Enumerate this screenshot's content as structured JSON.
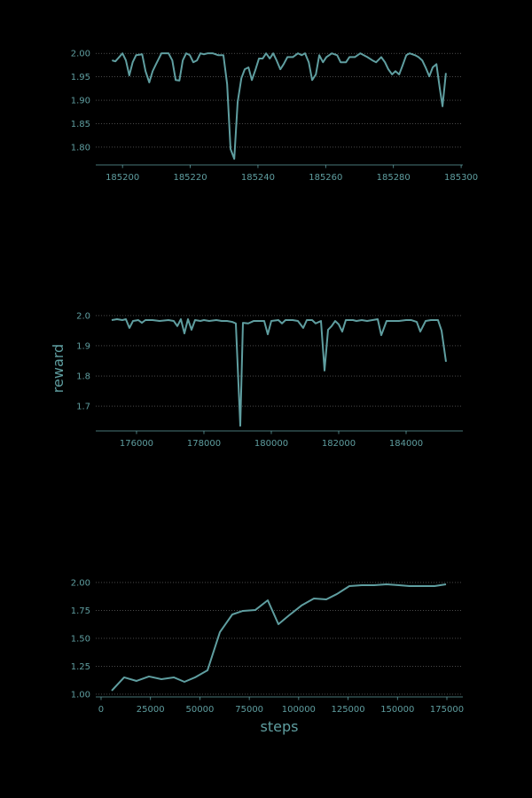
{
  "chart_data": [
    {
      "type": "line",
      "color": "#5f9ea0",
      "grid": true,
      "xlim": [
        185192.1,
        185300.5
      ],
      "ylim": [
        1.762,
        2.023
      ],
      "xticks": [
        185200,
        185220,
        185240,
        185260,
        185280,
        185300
      ],
      "yticks": [
        {
          "value": 1.8,
          "label": "1.80"
        },
        1.85,
        {
          "value": 1.9,
          "label": "1.90"
        },
        1.95,
        {
          "value": 2.0,
          "label": "2.00"
        }
      ],
      "series": [
        {
          "x": [
            185196.9,
            185197.9,
            185200,
            185201,
            185202,
            185203,
            185204,
            185205.8,
            185206.8,
            185207.9,
            185208.9,
            185209.9,
            185211.5,
            185213.6,
            185214.7,
            185215.7,
            185216.8,
            185217.8,
            185218.8,
            185219.9,
            185220.9,
            185222,
            185223,
            185224,
            185225.1,
            185226.7,
            185228.3,
            185229.8,
            185230.9,
            185231.9,
            185233,
            185234,
            185235.1,
            185236.1,
            185237.2,
            185238.2,
            185239.3,
            185240.3,
            185241.4,
            185242.4,
            185243.5,
            185244.5,
            185245.5,
            185246.6,
            185247.6,
            185248.7,
            185250.3,
            185251.8,
            185252.9,
            185253.9,
            185255,
            185256,
            185257.1,
            185258.1,
            185259.2,
            185260.2,
            185261.8,
            185263.4,
            185264.4,
            185266,
            185267,
            185268.6,
            185270.2,
            185272.3,
            185273.8,
            185274.9,
            185276.4,
            185277.5,
            185278.5,
            185279.6,
            185280.6,
            185281.7,
            185282.7,
            185283.8,
            185284.8,
            185286.4,
            185287.4,
            185288.5,
            185289.5,
            185290.6,
            185291.6,
            185292.7,
            185293.7,
            185294.5,
            185295.5
          ],
          "values": [
            1.985,
            1.983,
            2.0,
            1.985,
            1.953,
            1.981,
            1.996,
            1.998,
            1.962,
            1.938,
            1.962,
            1.977,
            2.0,
            2.0,
            1.985,
            1.943,
            1.942,
            1.985,
            2.0,
            1.996,
            1.981,
            1.985,
            2.0,
            1.998,
            2.0,
            2.0,
            1.996,
            1.996,
            1.934,
            1.796,
            1.775,
            1.896,
            1.947,
            1.966,
            1.97,
            1.943,
            1.966,
            1.989,
            1.989,
            2.0,
            1.989,
            2.0,
            1.985,
            1.966,
            1.977,
            1.992,
            1.992,
            2.0,
            1.996,
            2.0,
            1.981,
            1.943,
            1.955,
            1.996,
            1.981,
            1.992,
            2.0,
            1.996,
            1.981,
            1.981,
            1.992,
            1.992,
            2.0,
            1.992,
            1.985,
            1.981,
            1.992,
            1.981,
            1.966,
            1.955,
            1.962,
            1.955,
            1.974,
            1.996,
            2.0,
            1.996,
            1.992,
            1.985,
            1.97,
            1.951,
            1.97,
            1.977,
            1.925,
            1.887,
            1.958
          ]
        }
      ]
    },
    {
      "type": "line",
      "color": "#5f9ea0",
      "grid": true,
      "ylabel": "reward",
      "xlim": [
        174790,
        185684
      ],
      "ylim": [
        1.618,
        2.032
      ],
      "xticks": [
        176000,
        178000,
        180000,
        182000,
        184000
      ],
      "yticks": [
        1.7,
        1.8,
        1.9,
        {
          "value": 2.0,
          "label": "2.0"
        }
      ],
      "series": [
        {
          "x": [
            175263,
            175421,
            175579,
            175684,
            175789,
            175895,
            176053,
            176158,
            176263,
            176474,
            176684,
            176947,
            177105,
            177211,
            177316,
            177421,
            177526,
            177632,
            177737,
            177895,
            178000,
            178158,
            178368,
            178526,
            178684,
            178842,
            178947,
            179079,
            179158,
            179316,
            179474,
            179684,
            179789,
            179895,
            180000,
            180211,
            180316,
            180421,
            180632,
            180789,
            180947,
            181053,
            181211,
            181316,
            181474,
            181579,
            181684,
            181789,
            181895,
            182000,
            182105,
            182211,
            182421,
            182526,
            182684,
            182842,
            183000,
            183158,
            183263,
            183421,
            183579,
            183789,
            184000,
            184158,
            184316,
            184421,
            184579,
            184737,
            184947,
            185053,
            185184
          ],
          "values": [
            1.985,
            1.988,
            1.985,
            1.988,
            1.959,
            1.982,
            1.985,
            1.976,
            1.985,
            1.985,
            1.982,
            1.985,
            1.982,
            1.965,
            1.988,
            1.941,
            1.988,
            1.953,
            1.985,
            1.982,
            1.985,
            1.982,
            1.985,
            1.982,
            1.982,
            1.979,
            1.974,
            1.635,
            1.976,
            1.974,
            1.982,
            1.982,
            1.982,
            1.938,
            1.982,
            1.985,
            1.974,
            1.985,
            1.985,
            1.982,
            1.959,
            1.985,
            1.985,
            1.974,
            1.982,
            1.818,
            1.953,
            1.965,
            1.982,
            1.971,
            1.947,
            1.985,
            1.985,
            1.982,
            1.985,
            1.982,
            1.985,
            1.988,
            1.935,
            1.982,
            1.982,
            1.982,
            1.985,
            1.985,
            1.979,
            1.947,
            1.982,
            1.985,
            1.985,
            1.95,
            1.847
          ]
        }
      ]
    },
    {
      "type": "line",
      "color": "#5f9ea0",
      "grid": true,
      "xlabel": "steps",
      "xlim": [
        -2692,
        183077
      ],
      "ylim": [
        0.976,
        2.095
      ],
      "xticks": [
        0,
        25000,
        50000,
        75000,
        100000,
        125000,
        150000,
        175000
      ],
      "yticks": [
        {
          "value": 1.0,
          "label": "1.00"
        },
        1.25,
        {
          "value": 1.5,
          "label": "1.50"
        },
        1.75,
        {
          "value": 2.0,
          "label": "2.00"
        }
      ],
      "series": [
        {
          "x": [
            5385,
            11667,
            17949,
            24231,
            30513,
            36795,
            42180,
            47564,
            53846,
            60128,
            66410,
            71795,
            78077,
            84359,
            89744,
            95128,
            101410,
            107692,
            113974,
            119359,
            125641,
            131923,
            138205,
            144487,
            150769,
            156154,
            162436,
            168718,
            174551
          ],
          "values": [
            1.032,
            1.151,
            1.119,
            1.159,
            1.135,
            1.151,
            1.111,
            1.151,
            1.214,
            1.556,
            1.714,
            1.746,
            1.754,
            1.841,
            1.627,
            1.706,
            1.794,
            1.857,
            1.849,
            1.897,
            1.968,
            1.976,
            1.976,
            1.984,
            1.976,
            1.968,
            1.968,
            1.968,
            1.984
          ]
        }
      ]
    }
  ]
}
